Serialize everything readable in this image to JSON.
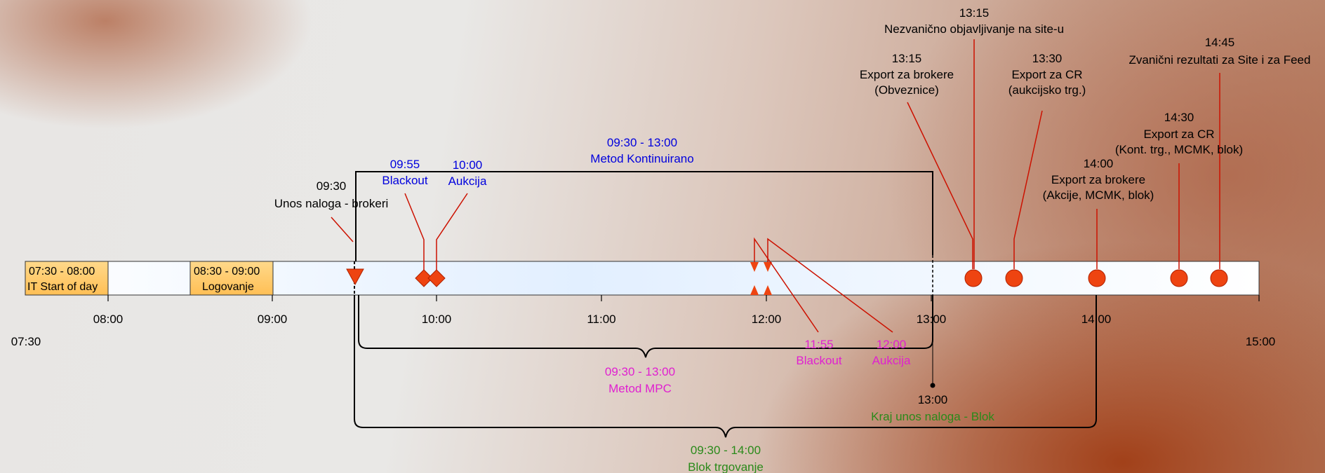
{
  "timeline": {
    "start_label": "07:30",
    "end_label": "15:00",
    "ticks": [
      "08:00",
      "09:00",
      "10:00",
      "11:00",
      "12:00",
      "13:00",
      "14:00"
    ]
  },
  "boxes": [
    {
      "time": "07:30 - 08:00",
      "name": "IT Start of day"
    },
    {
      "time": "08:30 - 09:00",
      "name": "Logovanje"
    }
  ],
  "events": {
    "unos": {
      "time": "09:30",
      "name": "Unos naloga - brokeri"
    },
    "blackout1": {
      "time": "09:55",
      "name": "Blackout"
    },
    "aukcija1": {
      "time": "10:00",
      "name": "Aukcija"
    },
    "kontinuirano": {
      "time": "09:30 - 13:00",
      "name": "Metod Kontinuirano"
    },
    "mpc": {
      "time": "09:30 - 13:00",
      "name": "Metod MPC"
    },
    "blackout2": {
      "time": "11:55",
      "name": "Blackout"
    },
    "aukcija2": {
      "time": "12:00",
      "name": "Aukcija"
    },
    "kraj": {
      "time": "13:00",
      "name": "Kraj unos naloga - Blok"
    },
    "blok": {
      "time": "09:30 - 14:00",
      "name": "Blok trgovanje"
    },
    "export_obv": {
      "time": "13:15",
      "name1": "Export za brokere",
      "name2": "(Obveznice)"
    },
    "nezvanicno": {
      "time": "13:15",
      "name": "Nezvanično objavljivanje na site-u"
    },
    "export_cr_auk": {
      "time": "13:30",
      "name1": "Export za CR",
      "name2": "(aukcijsko trg.)"
    },
    "export_akcije": {
      "time": "14:00",
      "name1": "Export za brokere",
      "name2": "(Akcije, MCMK, blok)"
    },
    "export_cr_kont": {
      "time": "14:30",
      "name1": "Export za CR",
      "name2": "(Kont. trg., MCMK, blok)"
    },
    "zvanicni": {
      "time": "14:45",
      "name": "Zvanični rezultati za Site i za Feed"
    }
  },
  "colors": {
    "marker": "#ee4411",
    "blue": "#0000dd",
    "magenta": "#e020d0",
    "green": "#2a8a1a",
    "box_fill": "#ffcc66"
  }
}
